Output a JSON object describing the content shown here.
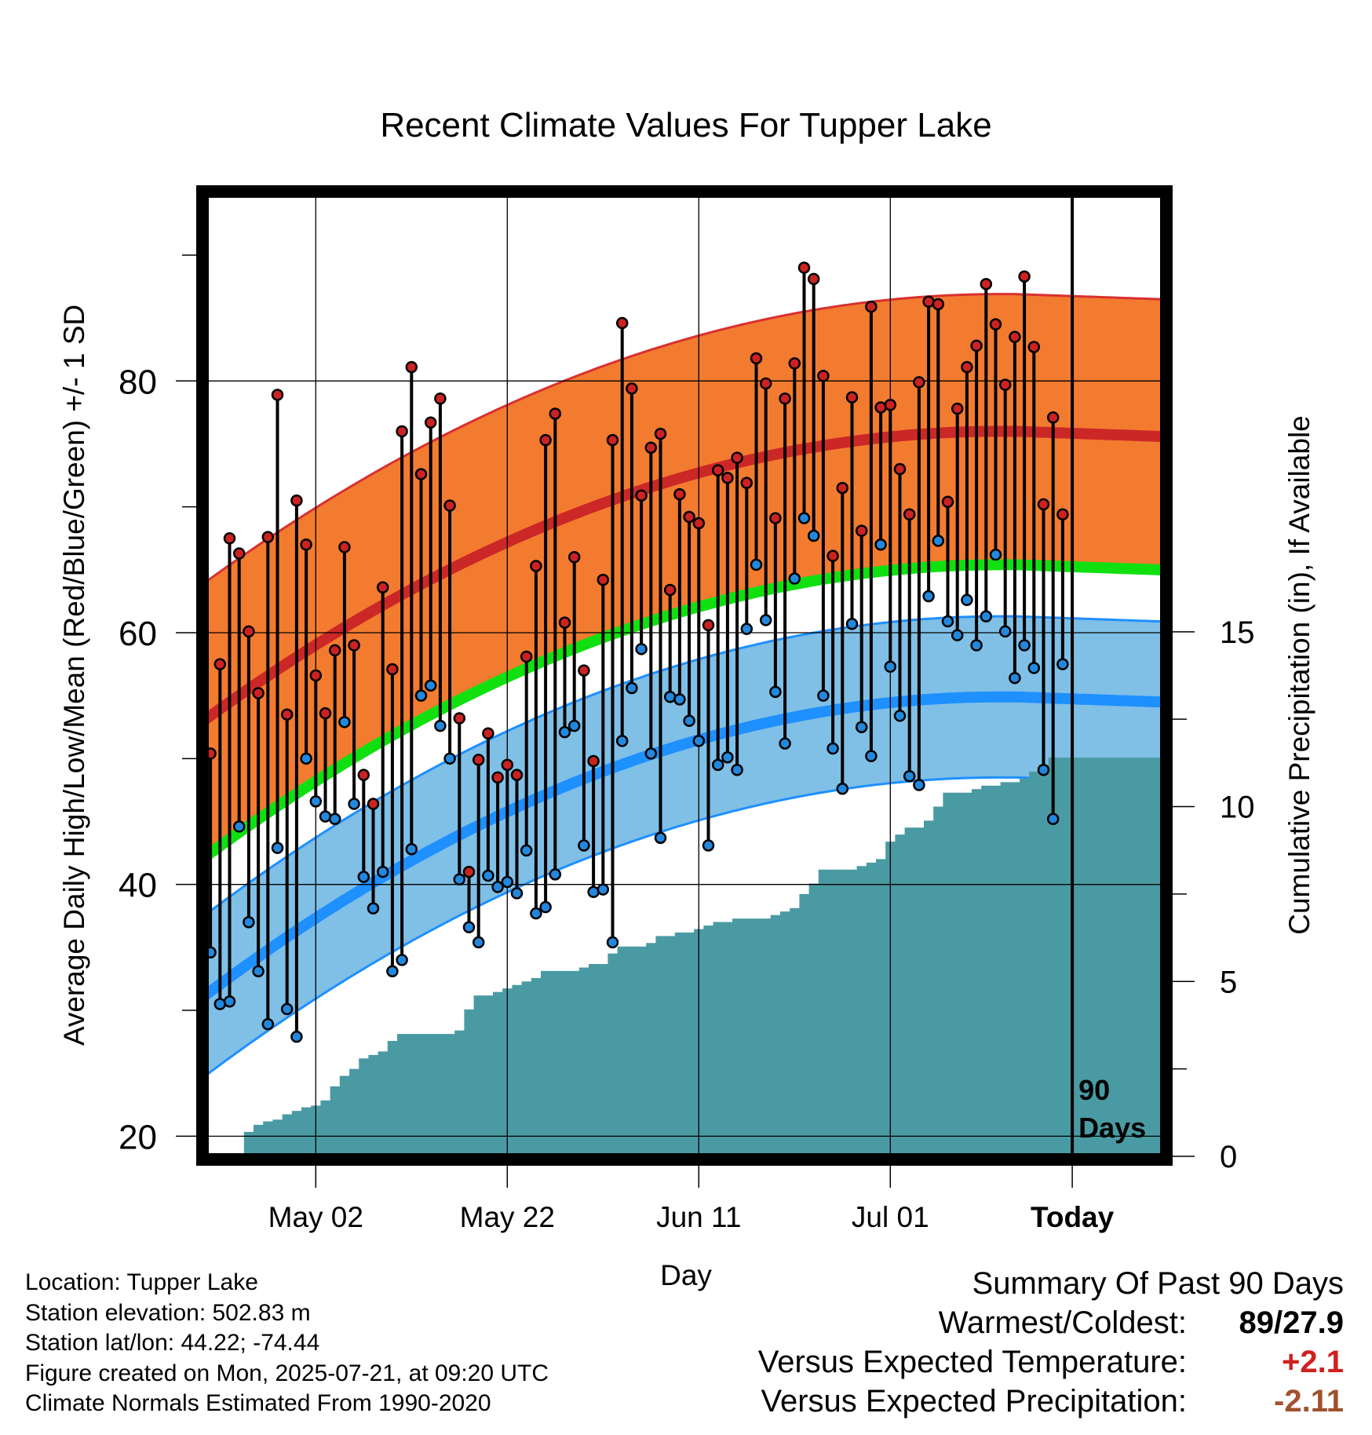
{
  "chart_data": {
    "type": "line",
    "title": "Recent Climate Values For Tupper Lake",
    "xlabel": "Day",
    "ylabel": "Average Daily High/Low/Mean (Red/Blue/Green) +/- 1 SD",
    "y2label": "Cumulative Precipitation (in), If Available",
    "x_tick_labels": [
      "May 02",
      "May 22",
      "Jun 11",
      "Jul 01",
      "Today"
    ],
    "y_ticks": [
      "20",
      "40",
      "60",
      "80"
    ],
    "y2_ticks": [
      "0",
      "5",
      "10",
      "15"
    ],
    "ylim": [
      18.4,
      94.8
    ],
    "y2lim": [
      0,
      27.5
    ],
    "xlim_days": [
      -90.5,
      9.5
    ],
    "window_label_line1": "90",
    "window_label_line2": "Days",
    "daily": [
      {
        "high": 50.4,
        "low": 34.6
      },
      {
        "high": 57.5,
        "low": 30.5
      },
      {
        "high": 67.5,
        "low": 30.7
      },
      {
        "high": 66.3,
        "low": 44.6
      },
      {
        "high": 60.1,
        "low": 37.0
      },
      {
        "high": 55.2,
        "low": 33.1
      },
      {
        "high": 67.6,
        "low": 28.9
      },
      {
        "high": 78.9,
        "low": 42.9
      },
      {
        "high": 53.5,
        "low": 30.1
      },
      {
        "high": 70.5,
        "low": 27.9
      },
      {
        "high": 67.0,
        "low": 50.0
      },
      {
        "high": 56.6,
        "low": 46.6
      },
      {
        "high": 53.6,
        "low": 45.4
      },
      {
        "high": 58.6,
        "low": 45.2
      },
      {
        "high": 66.8,
        "low": 52.9
      },
      {
        "high": 59.0,
        "low": 46.4
      },
      {
        "high": 48.7,
        "low": 40.6
      },
      {
        "high": 46.4,
        "low": 38.1
      },
      {
        "high": 63.6,
        "low": 41.0
      },
      {
        "high": 57.1,
        "low": 33.1
      },
      {
        "high": 76.0,
        "low": 34.0
      },
      {
        "high": 81.1,
        "low": 42.8
      },
      {
        "high": 72.6,
        "low": 55.0
      },
      {
        "high": 76.7,
        "low": 55.8
      },
      {
        "high": 78.6,
        "low": 52.6
      },
      {
        "high": 70.1,
        "low": 50.0
      },
      {
        "high": 53.2,
        "low": 40.4
      },
      {
        "high": 41.0,
        "low": 36.6
      },
      {
        "high": 49.9,
        "low": 35.4
      },
      {
        "high": 52.0,
        "low": 40.7
      },
      {
        "high": 48.5,
        "low": 39.8
      },
      {
        "high": 49.5,
        "low": 40.2
      },
      {
        "high": 48.7,
        "low": 39.3
      },
      {
        "high": 58.1,
        "low": 42.7
      },
      {
        "high": 65.3,
        "low": 37.7
      },
      {
        "high": 75.3,
        "low": 38.2
      },
      {
        "high": 77.4,
        "low": 40.8
      },
      {
        "high": 60.8,
        "low": 52.1
      },
      {
        "high": 66.0,
        "low": 52.6
      },
      {
        "high": 57.0,
        "low": 43.1
      },
      {
        "high": 49.8,
        "low": 39.4
      },
      {
        "high": 64.2,
        "low": 39.6
      },
      {
        "high": 75.3,
        "low": 35.4
      },
      {
        "high": 84.6,
        "low": 51.4
      },
      {
        "high": 79.4,
        "low": 55.6
      },
      {
        "high": 70.9,
        "low": 58.7
      },
      {
        "high": 74.7,
        "low": 50.4
      },
      {
        "high": 75.8,
        "low": 43.7
      },
      {
        "high": 63.4,
        "low": 54.9
      },
      {
        "high": 71.0,
        "low": 54.7
      },
      {
        "high": 69.2,
        "low": 53.0
      },
      {
        "high": 68.7,
        "low": 51.4
      },
      {
        "high": 60.6,
        "low": 43.1
      },
      {
        "high": 72.9,
        "low": 49.5
      },
      {
        "high": 72.3,
        "low": 50.1
      },
      {
        "high": 73.9,
        "low": 49.1
      },
      {
        "high": 71.9,
        "low": 60.3
      },
      {
        "high": 81.8,
        "low": 65.4
      },
      {
        "high": 79.8,
        "low": 61.0
      },
      {
        "high": 69.1,
        "low": 55.3
      },
      {
        "high": 78.6,
        "low": 51.2
      },
      {
        "high": 81.4,
        "low": 64.3
      },
      {
        "high": 89.0,
        "low": 69.1
      },
      {
        "high": 88.1,
        "low": 67.7
      },
      {
        "high": 80.4,
        "low": 55.0
      },
      {
        "high": 66.1,
        "low": 50.8
      },
      {
        "high": 71.5,
        "low": 47.6
      },
      {
        "high": 78.7,
        "low": 60.7
      },
      {
        "high": 68.1,
        "low": 52.5
      },
      {
        "high": 85.9,
        "low": 50.2
      },
      {
        "high": 77.9,
        "low": 67.0
      },
      {
        "high": 78.1,
        "low": 57.3
      },
      {
        "high": 73.0,
        "low": 53.4
      },
      {
        "high": 69.4,
        "low": 48.6
      },
      {
        "high": 79.9,
        "low": 47.9
      },
      {
        "high": 86.3,
        "low": 62.9
      },
      {
        "high": 86.1,
        "low": 67.3
      },
      {
        "high": 70.4,
        "low": 60.9
      },
      {
        "high": 77.8,
        "low": 59.8
      },
      {
        "high": 81.1,
        "low": 62.6
      },
      {
        "high": 82.8,
        "low": 59.0
      },
      {
        "high": 87.7,
        "low": 61.3
      },
      {
        "high": 84.5,
        "low": 66.2
      },
      {
        "high": 79.7,
        "low": 60.1
      },
      {
        "high": 83.5,
        "low": 56.4
      },
      {
        "high": 88.3,
        "low": 59.0
      },
      {
        "high": 82.7,
        "low": 57.2
      },
      {
        "high": 70.2,
        "low": 49.1
      },
      {
        "high": 77.1,
        "low": 45.2
      },
      {
        "high": 69.4,
        "low": 57.5
      }
    ],
    "normals": {
      "high_mean": {
        "start": 53.4,
        "end": 75.6,
        "peak": 76.0
      },
      "high_sd": 10.9,
      "low_mean": {
        "start": 31.5,
        "end": 54.5,
        "peak": 54.9
      },
      "low_sd": 6.4,
      "mean": {
        "start": 42.5,
        "end": 65.0,
        "peak": 65.4
      }
    },
    "precip_cumulative": [
      0,
      0,
      0,
      0,
      0.7,
      0.9,
      1.0,
      1.05,
      1.2,
      1.3,
      1.4,
      1.45,
      1.6,
      2.0,
      2.3,
      2.5,
      2.8,
      2.9,
      3.0,
      3.3,
      3.5,
      3.5,
      3.5,
      3.5,
      3.5,
      3.5,
      3.6,
      4.2,
      4.6,
      4.6,
      4.7,
      4.8,
      4.9,
      5.0,
      5.1,
      5.3,
      5.3,
      5.3,
      5.3,
      5.4,
      5.5,
      5.5,
      5.8,
      6.0,
      6.0,
      6.0,
      6.1,
      6.3,
      6.3,
      6.4,
      6.4,
      6.5,
      6.6,
      6.7,
      6.7,
      6.8,
      6.8,
      6.8,
      6.8,
      6.9,
      7.0,
      7.1,
      7.5,
      7.8,
      8.2,
      8.2,
      8.2,
      8.2,
      8.3,
      8.4,
      8.5,
      9.0,
      9.2,
      9.4,
      9.4,
      9.6,
      10.0,
      10.4,
      10.4,
      10.4,
      10.5,
      10.6,
      10.6,
      10.7,
      10.7,
      10.8,
      11.0,
      11.2,
      11.4,
      11.4
    ]
  },
  "footer": {
    "location": "Location: Tupper Lake",
    "elevation": "Station elevation: 502.83 m",
    "latlon": "Station lat/lon: 44.22; -74.44",
    "created": "Figure created on Mon, 2025-07-21, at 09:20 UTC",
    "normals": "Climate Normals Estimated From 1990-2020"
  },
  "summary": {
    "heading": "Summary Of Past 90 Days",
    "warmest_label": "Warmest/Coldest:",
    "warmest_value": "89/27.9",
    "temp_label": "Versus Expected Temperature:",
    "temp_value": "+2.1",
    "precip_label": "Versus Expected Precipitation:",
    "precip_value": "-2.11"
  },
  "colors": {
    "high_band": "#f27b30",
    "high_mean": "#cc2727",
    "low_band": "#80bfe6",
    "low_mean": "#1e90ff",
    "mean_line": "#10e010",
    "precip_fill": "#4a9aa3",
    "high_dot": "#cc2222",
    "low_dot": "#2288dd",
    "temp_value": "#d02020",
    "precip_value": "#a0522d"
  }
}
